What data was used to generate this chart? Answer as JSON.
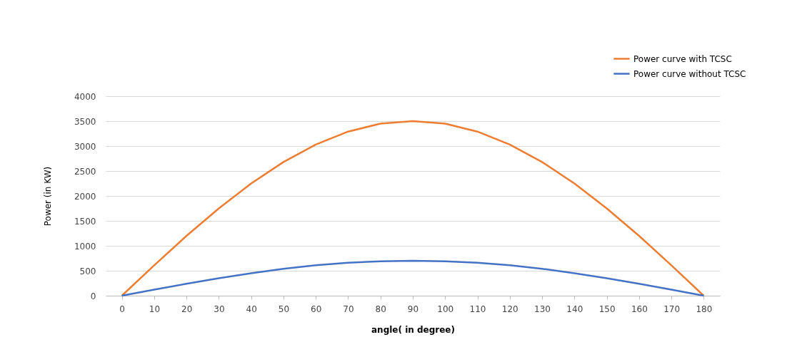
{
  "chart_data": {
    "type": "line",
    "xlabel": "angle( in degree)",
    "ylabel": "Power (in KW)",
    "categories": [
      "0",
      "10",
      "20",
      "30",
      "40",
      "50",
      "60",
      "70",
      "80",
      "90",
      "100",
      "110",
      "120",
      "130",
      "140",
      "150",
      "160",
      "170",
      "180"
    ],
    "series": [
      {
        "name": "Power curve with TCSC",
        "color": "#ed7d31",
        "values": [
          0,
          610,
          1200,
          1750,
          2250,
          2680,
          3030,
          3290,
          3450,
          3500,
          3450,
          3290,
          3030,
          2680,
          2250,
          1750,
          1200,
          610,
          0
        ]
      },
      {
        "name": "Power curve without TCSC",
        "color": "#4472c4",
        "values": [
          0,
          120,
          240,
          350,
          450,
          540,
          610,
          660,
          690,
          700,
          690,
          660,
          610,
          540,
          450,
          350,
          240,
          120,
          0
        ]
      }
    ],
    "ylim": [
      0,
      4000
    ],
    "yticks": [
      0,
      500,
      1000,
      1500,
      2000,
      2500,
      3000,
      3500,
      4000
    ],
    "grid": "y",
    "legend": "top right",
    "marker": "none",
    "line_style": "solid"
  }
}
